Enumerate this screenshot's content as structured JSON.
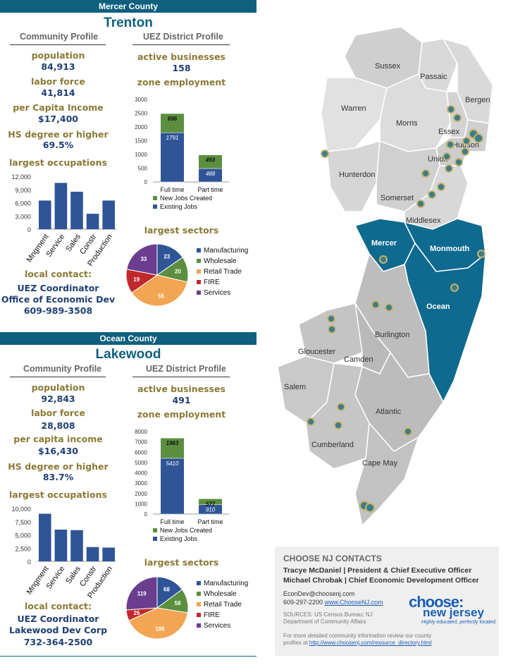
{
  "mercer": {
    "county": "Mercer County",
    "city": "Trenton",
    "community_heading": "Community Profile",
    "uez_heading": "UEZ District Profile",
    "population_label": "population",
    "population": "84,913",
    "labor_label": "labor force",
    "labor": "41,814",
    "income_label": "per Capita Income",
    "income": "$17,400",
    "hs_label": "HS degree or higher",
    "hs": "69.5%",
    "occ_label": "largest occupations",
    "businesses_label": "active businesses",
    "businesses": "158",
    "employment_label": "zone employment",
    "sectors_label": "largest sectors",
    "contact_label": "local contact:",
    "contact_1": "UEZ Coordinator",
    "contact_2": "Office of Economic Dev",
    "contact_3": "609-989-3508"
  },
  "ocean": {
    "county": "Ocean County",
    "city": "Lakewood",
    "community_heading": "Community Profile",
    "uez_heading": "UEZ District Profile",
    "population_label": "population",
    "population": "92,843",
    "labor_label": "labor force",
    "labor": "28,808",
    "income_label": "per capita income",
    "income": "$16,430",
    "hs_label": "HS degree or higher",
    "hs": "83.7%",
    "occ_label": "largest occupations",
    "businesses_label": "active businesses",
    "businesses": "491",
    "employment_label": "zone employment",
    "sectors_label": "largest sectors",
    "contact_label": "local contact:",
    "contact_1": "UEZ Coordinator",
    "contact_2": "Lakewood Dev Corp",
    "contact_3": "732-364-2500"
  },
  "chart_data": [
    {
      "id": "mercer-occupations",
      "type": "bar",
      "categories": [
        "Mngment",
        "Service",
        "Sales",
        "Constr",
        "Production"
      ],
      "values": [
        6500,
        10500,
        8500,
        3500,
        6500
      ],
      "yticks": [
        "0",
        "3,000",
        "6,000",
        "9,000",
        "12,000"
      ],
      "ylim": [
        0,
        12000
      ],
      "color": "#2f5597"
    },
    {
      "id": "mercer-employment",
      "type": "bar",
      "categories": [
        "Full time",
        "Part time"
      ],
      "series": [
        {
          "name": "Existing Jobs",
          "values": [
            1791,
            488
          ],
          "color": "#2f5597"
        },
        {
          "name": "New Jobs Created",
          "values": [
            696,
            493
          ],
          "color": "#5b8f3f"
        }
      ],
      "yticks": [
        "0",
        "500",
        "1000",
        "1500",
        "2000",
        "2500",
        "3000"
      ],
      "ylim": [
        0,
        3000
      ]
    },
    {
      "id": "mercer-sectors",
      "type": "pie",
      "labels": [
        "Manufacturing",
        "Wholesale",
        "Retail Trade",
        "FIRE",
        "Services"
      ],
      "values": [
        23,
        20,
        55,
        19,
        33
      ],
      "colors": [
        "#2f5597",
        "#5b8f3f",
        "#f2a553",
        "#c0282d",
        "#6a3d8e"
      ]
    },
    {
      "id": "ocean-occupations",
      "type": "bar",
      "categories": [
        "Mngment",
        "Service",
        "Sales",
        "Constr",
        "Production"
      ],
      "values": [
        9000,
        6000,
        5900,
        2700,
        2600
      ],
      "yticks": [
        "0",
        "2,500",
        "5,000",
        "7,500",
        "10,000"
      ],
      "ylim": [
        0,
        10000
      ],
      "color": "#2f5597"
    },
    {
      "id": "ocean-employment",
      "type": "bar",
      "categories": [
        "Full time",
        "Part time"
      ],
      "series": [
        {
          "name": "Existing Jobs",
          "values": [
            5410,
            910
          ],
          "color": "#2f5597"
        },
        {
          "name": "New Jobs Created",
          "values": [
            1963,
            577
          ],
          "color": "#5b8f3f"
        }
      ],
      "yticks": [
        "0",
        "1000",
        "2000",
        "3000",
        "4000",
        "5000",
        "6000",
        "7000",
        "8000"
      ],
      "ylim": [
        0,
        8000
      ]
    },
    {
      "id": "ocean-sectors",
      "type": "pie",
      "labels": [
        "Manufacturing",
        "Wholesale",
        "Retail Trade",
        "FIRE",
        "Services"
      ],
      "values": [
        68,
        58,
        186,
        26,
        119
      ],
      "colors": [
        "#2f5597",
        "#5b8f3f",
        "#f2a553",
        "#c0282d",
        "#6a3d8e"
      ]
    }
  ],
  "map": {
    "counties": [
      "Sussex",
      "Passaic",
      "Bergen",
      "Warren",
      "Morris",
      "Essex",
      "Hudson",
      "Union",
      "Hunterdon",
      "Somerset",
      "Middlesex",
      "Mercer",
      "Monmouth",
      "Ocean",
      "Burlington",
      "Gloucester",
      "Camden",
      "Salem",
      "Atlantic",
      "Cumberland",
      "Cape May"
    ],
    "highlight_color": "#0f6a8f",
    "base_color": "#cfcfcf"
  },
  "contacts": {
    "title": "CHOOSE NJ CONTACTS",
    "line1": "Tracye McDaniel  |  President & Chief Executive Officer",
    "line2": "Michael Chrobak  |  Chief Economic Development Officer",
    "email": "EconDev@choosenj.com",
    "phone": "609-297-2200",
    "website": "www.ChooseNJ.com",
    "sources": "SOURCES:   US   Census   Bureau;   NJ",
    "sources2": "Department of Community Affairs",
    "more1": "For more detailed community information review our county",
    "more2_prefix": "profiles at ",
    "more2_link": "http://www.choosenj.com/resource_directory.html",
    "logo_top": "choose:",
    "logo_bottom": "new jersey",
    "tagline": "Highly educated, perfectly located."
  }
}
